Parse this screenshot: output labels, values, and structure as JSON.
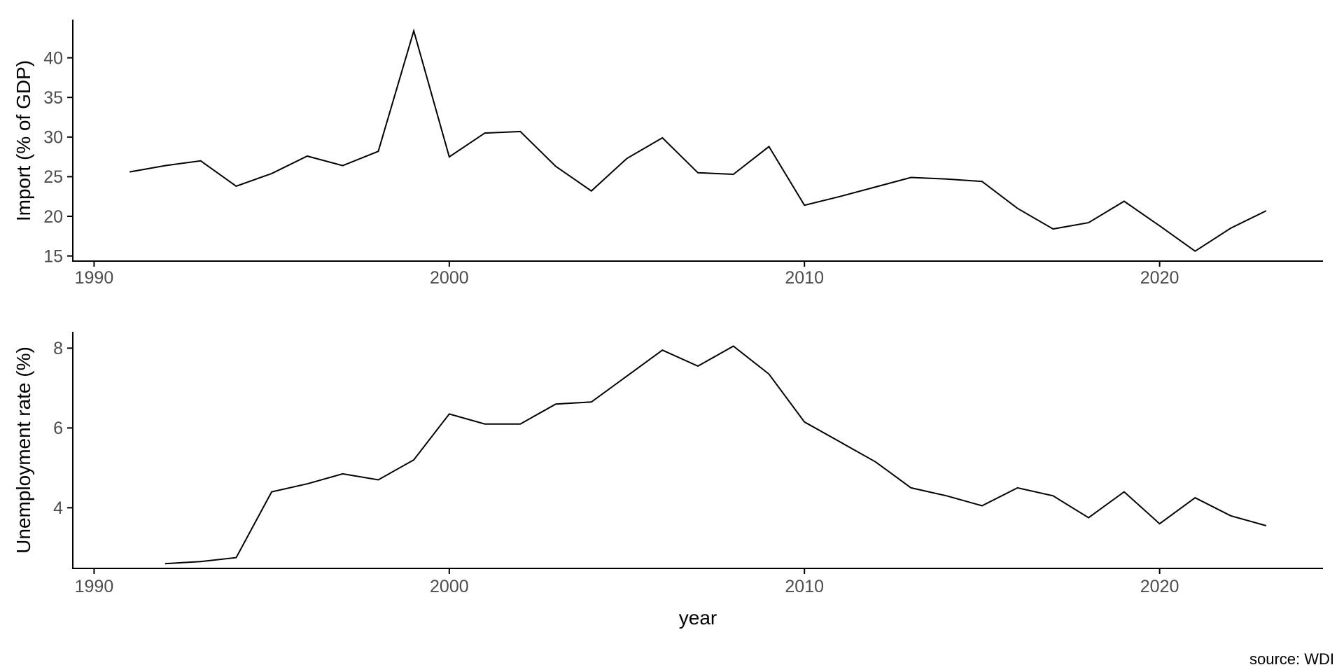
{
  "page": {
    "background": "#ffffff",
    "source_note": "source: WDI",
    "line_color": "#000000",
    "axis_color": "#000000",
    "tick_label_color": "#4d4d4d"
  },
  "chart_data": [
    {
      "type": "line",
      "title": "",
      "ylabel": "Import (% of GDP)",
      "xlabel": "",
      "legend": "none",
      "grid": false,
      "x_ticks": [
        1990,
        2000,
        2010,
        2020
      ],
      "y_ticks": [
        15,
        20,
        25,
        30,
        35,
        40
      ],
      "xlim": [
        1989.4,
        2024.6
      ],
      "ylim": [
        14.35,
        44.82
      ],
      "x": [
        1991,
        1992,
        1993,
        1994,
        1995,
        1996,
        1997,
        1998,
        1999,
        2000,
        2001,
        2002,
        2003,
        2004,
        2005,
        2006,
        2007,
        2008,
        2009,
        2010,
        2011,
        2012,
        2013,
        2014,
        2015,
        2016,
        2017,
        2018,
        2019,
        2020,
        2021,
        2022,
        2023
      ],
      "y": [
        25.6,
        26.4,
        27.0,
        23.8,
        25.4,
        27.6,
        26.4,
        28.2,
        43.4,
        27.5,
        30.5,
        30.7,
        26.3,
        23.2,
        27.3,
        29.9,
        25.5,
        25.3,
        28.8,
        21.4,
        22.5,
        23.7,
        24.9,
        24.7,
        24.4,
        21.0,
        18.4,
        19.2,
        21.9,
        18.8,
        15.6,
        18.5,
        20.7
      ]
    },
    {
      "type": "line",
      "title": "",
      "ylabel": "Unemployment rate (%)",
      "xlabel": "year",
      "legend": "none",
      "grid": false,
      "x_ticks": [
        1990,
        2000,
        2010,
        2020
      ],
      "y_ticks": [
        4,
        6,
        8
      ],
      "xlim": [
        1989.4,
        2024.6
      ],
      "ylim": [
        2.48,
        8.41
      ],
      "x": [
        1992,
        1993,
        1994,
        1995,
        1996,
        1997,
        1998,
        1999,
        2000,
        2001,
        2002,
        2003,
        2004,
        2005,
        2006,
        2007,
        2008,
        2009,
        2010,
        2011,
        2012,
        2013,
        2014,
        2015,
        2016,
        2017,
        2018,
        2019,
        2020,
        2021,
        2022,
        2023
      ],
      "y": [
        2.6,
        2.65,
        2.75,
        4.4,
        4.6,
        4.85,
        4.7,
        5.2,
        6.35,
        6.1,
        6.1,
        6.6,
        6.65,
        7.3,
        7.95,
        7.55,
        8.05,
        7.35,
        6.15,
        5.65,
        5.15,
        4.5,
        4.3,
        4.05,
        4.5,
        4.3,
        3.75,
        4.4,
        3.6,
        4.25,
        3.8,
        3.55
      ]
    }
  ]
}
